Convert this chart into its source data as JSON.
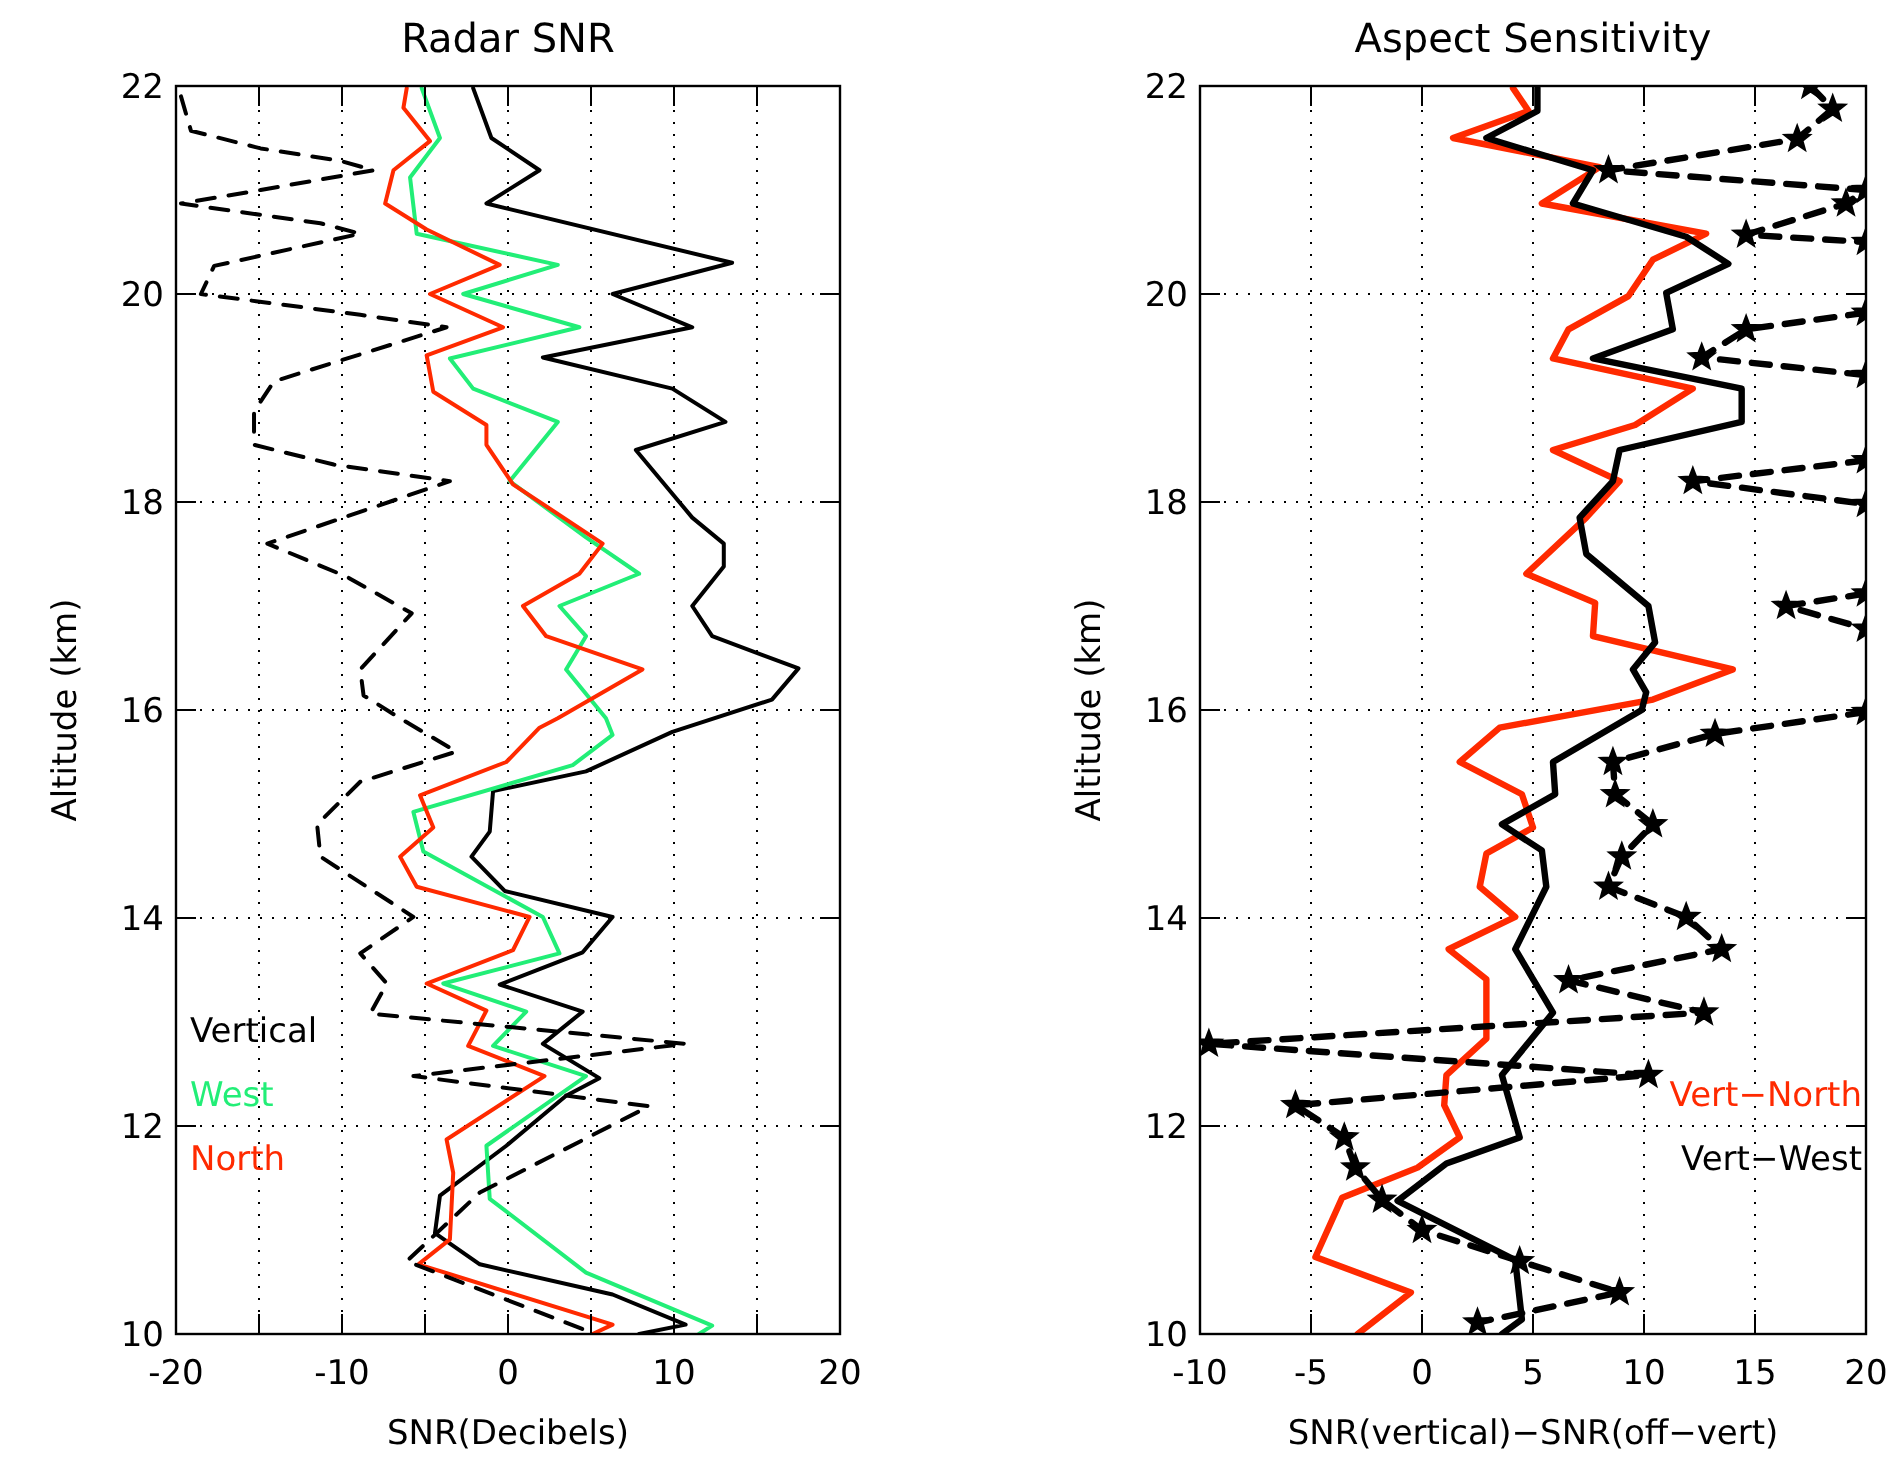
{
  "chart_data": [
    {
      "type": "line",
      "title": "Radar SNR",
      "xlabel": "SNR(Decibels)",
      "ylabel": "Altitude (km)",
      "xlim": [
        -20,
        20
      ],
      "ylim": [
        10,
        22
      ],
      "xticks": [
        -20,
        {
          "value": -15,
          "label": null
        },
        -10,
        {
          "value": -5,
          "label": null
        },
        0,
        {
          "value": 5,
          "label": null
        },
        10,
        {
          "value": 15,
          "label": null
        },
        20
      ],
      "yticks": [
        10,
        12,
        14,
        16,
        18,
        20,
        22
      ],
      "grid": true,
      "legend": "bottom left",
      "series": [
        {
          "name": "Vertical",
          "color": "#000000",
          "x": [
            -2.1,
            -1.0,
            1.9,
            -1.3,
            13.5,
            6.3,
            11.1,
            2.1,
            9.9,
            13.1,
            7.7,
            11.1,
            13.0,
            13.0,
            11.1,
            12.3,
            17.5,
            15.9,
            9.9,
            4.7,
            -0.9,
            -1.1,
            -2.2,
            -0.2,
            6.3,
            4.5,
            -0.5,
            4.5,
            2.1,
            5.5,
            3.5,
            -0.1,
            -4.1,
            -4.4,
            -1.7,
            6.3,
            10.7,
            7.9
          ],
          "values": [
            21.98,
            21.5,
            21.19,
            20.87,
            20.3,
            20.0,
            19.68,
            19.39,
            19.09,
            18.77,
            18.5,
            17.85,
            17.6,
            17.38,
            17.0,
            16.71,
            16.4,
            16.1,
            15.79,
            15.41,
            15.22,
            14.83,
            14.59,
            14.26,
            14.01,
            13.67,
            13.36,
            13.1,
            12.79,
            12.46,
            12.29,
            11.81,
            11.33,
            10.97,
            10.67,
            10.38,
            10.09,
            10.0
          ]
        },
        {
          "name": "West",
          "color": "#22ee77",
          "x": [
            -5.2,
            -4.1,
            -5.9,
            -5.5,
            3.0,
            -2.7,
            4.3,
            -3.5,
            -2.1,
            3.0,
            0.1,
            4.7,
            7.9,
            3.1,
            4.7,
            3.5,
            5.9,
            6.3,
            3.9,
            -5.7,
            -5.1,
            2.1,
            3.1,
            -3.9,
            1.1,
            -0.9,
            4.7,
            -1.3,
            -1.1,
            4.7,
            12.3,
            11.5
          ],
          "values": [
            21.98,
            21.5,
            21.12,
            20.58,
            20.28,
            20.0,
            19.68,
            19.38,
            19.09,
            18.77,
            18.2,
            17.66,
            17.31,
            17.0,
            16.71,
            16.39,
            15.92,
            15.76,
            15.47,
            15.02,
            14.64,
            14.01,
            13.66,
            13.37,
            13.1,
            12.77,
            12.48,
            11.81,
            11.3,
            10.59,
            10.08,
            10.0
          ]
        },
        {
          "name": "North",
          "color": "#ff2a00",
          "x": [
            -6.1,
            -6.3,
            -4.7,
            -6.9,
            -7.4,
            -4.9,
            -0.5,
            -4.7,
            -0.3,
            -4.9,
            -4.5,
            -1.3,
            -1.3,
            0.3,
            5.7,
            4.3,
            0.9,
            2.3,
            8.1,
            3.0,
            1.9,
            -0.1,
            -5.3,
            -4.5,
            -6.5,
            -5.5,
            1.3,
            0.3,
            -4.9,
            -1.3,
            -2.4,
            2.2,
            -3.7,
            -3.3,
            -3.5,
            -5.4,
            6.3,
            5.1
          ],
          "values": [
            21.98,
            21.79,
            21.47,
            21.19,
            20.87,
            20.62,
            20.28,
            20.0,
            19.68,
            19.41,
            19.06,
            18.74,
            18.55,
            18.17,
            17.6,
            17.31,
            17.0,
            16.71,
            16.39,
            15.92,
            15.83,
            15.5,
            15.18,
            14.87,
            14.59,
            14.3,
            14.01,
            13.69,
            13.37,
            13.11,
            12.77,
            12.48,
            11.87,
            11.55,
            10.91,
            10.67,
            10.09,
            10.0
          ]
        },
        {
          "color": "#000000",
          "line_style": "dashed",
          "x": [
            -19.7,
            -19.1,
            -14.9,
            -10.1,
            -8.1,
            -14.9,
            -19.7,
            -11.3,
            -8.9,
            -17.7,
            -18.5,
            -8.9,
            -3.7,
            -14.1,
            -15.3,
            -15.3,
            -10.5,
            -3.5,
            -14.5,
            -9.7,
            -5.8,
            -8.9,
            -8.7,
            -6.5,
            -3.1,
            -8.9,
            -11.5,
            -11.3,
            -5.7,
            -8.9,
            -7.3,
            -8.3,
            10.7,
            -5.7,
            8.5,
            -1.7,
            -6.1,
            5.1
          ],
          "values": [
            21.9,
            21.57,
            21.4,
            21.28,
            21.19,
            21.0,
            20.87,
            20.68,
            20.58,
            20.27,
            20.0,
            19.8,
            19.68,
            19.16,
            18.87,
            18.55,
            18.36,
            18.2,
            17.6,
            17.28,
            16.93,
            16.39,
            16.14,
            15.92,
            15.6,
            15.31,
            14.9,
            14.59,
            14.01,
            13.66,
            13.37,
            13.08,
            12.79,
            12.48,
            12.19,
            11.36,
            10.7,
            10.01
          ]
        }
      ]
    },
    {
      "type": "line",
      "title": "Aspect Sensitivity",
      "xlabel": "SNR(vertical)−SNR(off−vert)",
      "ylabel": "Altitude (km)",
      "xlim": [
        -10,
        20
      ],
      "ylim": [
        10,
        22
      ],
      "xticks": [
        -10,
        -5,
        0,
        5,
        10,
        15,
        20
      ],
      "yticks": [
        10,
        12,
        14,
        16,
        18,
        20,
        22
      ],
      "grid": true,
      "legend": "bottom right",
      "series": [
        {
          "name": "Vert−North",
          "color": "#ff2a00",
          "x": [
            4.1,
            4.8,
            1.4,
            8.0,
            5.4,
            12.8,
            10.4,
            9.3,
            6.6,
            5.9,
            12.2,
            9.6,
            5.9,
            8.9,
            7.4,
            4.7,
            7.8,
            7.7,
            14.0,
            10.4,
            3.5,
            1.7,
            4.5,
            5.0,
            2.9,
            2.6,
            4.2,
            1.2,
            2.9,
            2.9,
            1.1,
            1.0,
            1.7,
            -0.2,
            -3.6,
            -4.8,
            -0.5,
            -2.9
          ],
          "values": [
            21.98,
            21.76,
            21.5,
            21.22,
            20.87,
            20.58,
            20.33,
            19.98,
            19.66,
            19.38,
            19.09,
            18.74,
            18.5,
            18.2,
            17.85,
            17.31,
            17.03,
            16.71,
            16.39,
            16.1,
            15.83,
            15.5,
            15.19,
            14.87,
            14.62,
            14.3,
            14.01,
            13.7,
            13.41,
            12.84,
            12.49,
            12.2,
            11.89,
            11.6,
            11.31,
            10.74,
            10.4,
            10.0
          ]
        },
        {
          "name": "Vert−West",
          "color": "#000000",
          "x": [
            5.2,
            5.2,
            2.9,
            7.7,
            6.8,
            11.9,
            13.8,
            11.0,
            11.3,
            7.7,
            14.4,
            14.4,
            8.9,
            8.6,
            7.1,
            7.4,
            10.2,
            10.5,
            9.5,
            10.1,
            9.9,
            5.9,
            6.0,
            3.6,
            5.4,
            5.6,
            4.2,
            5.9,
            3.6,
            4.4,
            1.1,
            -1.1,
            4.2,
            4.5,
            3.6
          ],
          "values": [
            21.98,
            21.76,
            21.5,
            21.19,
            20.87,
            20.55,
            20.29,
            20.01,
            19.66,
            19.38,
            19.09,
            18.77,
            18.5,
            18.2,
            17.85,
            17.5,
            17.0,
            16.65,
            16.39,
            16.17,
            16.0,
            15.5,
            15.19,
            14.9,
            14.65,
            14.3,
            13.7,
            13.09,
            12.49,
            11.89,
            11.64,
            11.28,
            10.71,
            10.14,
            10.0
          ]
        },
        {
          "color": "#000000",
          "line_style": "dashed",
          "marker": "star",
          "x": [
            17.5,
            18.5,
            16.9,
            8.4,
            20,
            19.1,
            14.6,
            20,
            null,
            20,
            14.6,
            12.6,
            20,
            null,
            20,
            12.2,
            20,
            null,
            20,
            16.4,
            20,
            null,
            20,
            13.2,
            8.6,
            8.7,
            10.4,
            9.0,
            8.4,
            11.9,
            13.5,
            6.6,
            12.7,
            -9.6,
            10.2,
            -5.7,
            -3.5,
            -3.0,
            -1.8,
            0.0,
            4.4,
            8.9,
            2.5
          ],
          "values": [
            22.0,
            21.78,
            21.49,
            21.19,
            21.0,
            20.87,
            20.57,
            20.5,
            null,
            19.82,
            19.66,
            19.39,
            19.22,
            null,
            18.4,
            18.2,
            17.98,
            null,
            17.12,
            17.0,
            16.78,
            null,
            15.98,
            15.77,
            15.5,
            15.19,
            14.9,
            14.59,
            14.3,
            14.01,
            13.7,
            13.4,
            13.09,
            12.79,
            12.49,
            12.2,
            11.89,
            11.6,
            11.29,
            11.0,
            10.7,
            10.4,
            10.11
          ]
        }
      ]
    }
  ]
}
